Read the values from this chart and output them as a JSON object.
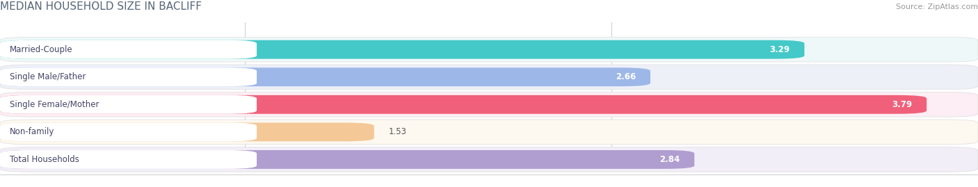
{
  "title": "MEDIAN HOUSEHOLD SIZE IN BACLIFF",
  "source": "Source: ZipAtlas.com",
  "categories": [
    "Married-Couple",
    "Single Male/Father",
    "Single Female/Mother",
    "Non-family",
    "Total Households"
  ],
  "values": [
    3.29,
    2.66,
    3.79,
    1.53,
    2.84
  ],
  "bar_colors": [
    "#45c8c8",
    "#9db8e8",
    "#f0607a",
    "#f5c898",
    "#b09ed0"
  ],
  "bar_bg_colors": [
    "#eff8f8",
    "#eef0f8",
    "#fceef4",
    "#fdf8f0",
    "#f2eef8"
  ],
  "label_text_colors": [
    "#444466",
    "#444466",
    "#444466",
    "#666644",
    "#444466"
  ],
  "value_text_colors": [
    "#ffffff",
    "#555577",
    "#ffffff",
    "#555555",
    "#ffffff"
  ],
  "xmin": 0.0,
  "xmax": 4.0,
  "xticks": [
    1.0,
    2.5,
    4.0
  ],
  "bar_height": 0.68,
  "label_fontsize": 8.5,
  "value_fontsize": 8.5,
  "title_fontsize": 11,
  "source_fontsize": 8,
  "background_color": "#ffffff",
  "row_bg_color": "#f0f0f0"
}
